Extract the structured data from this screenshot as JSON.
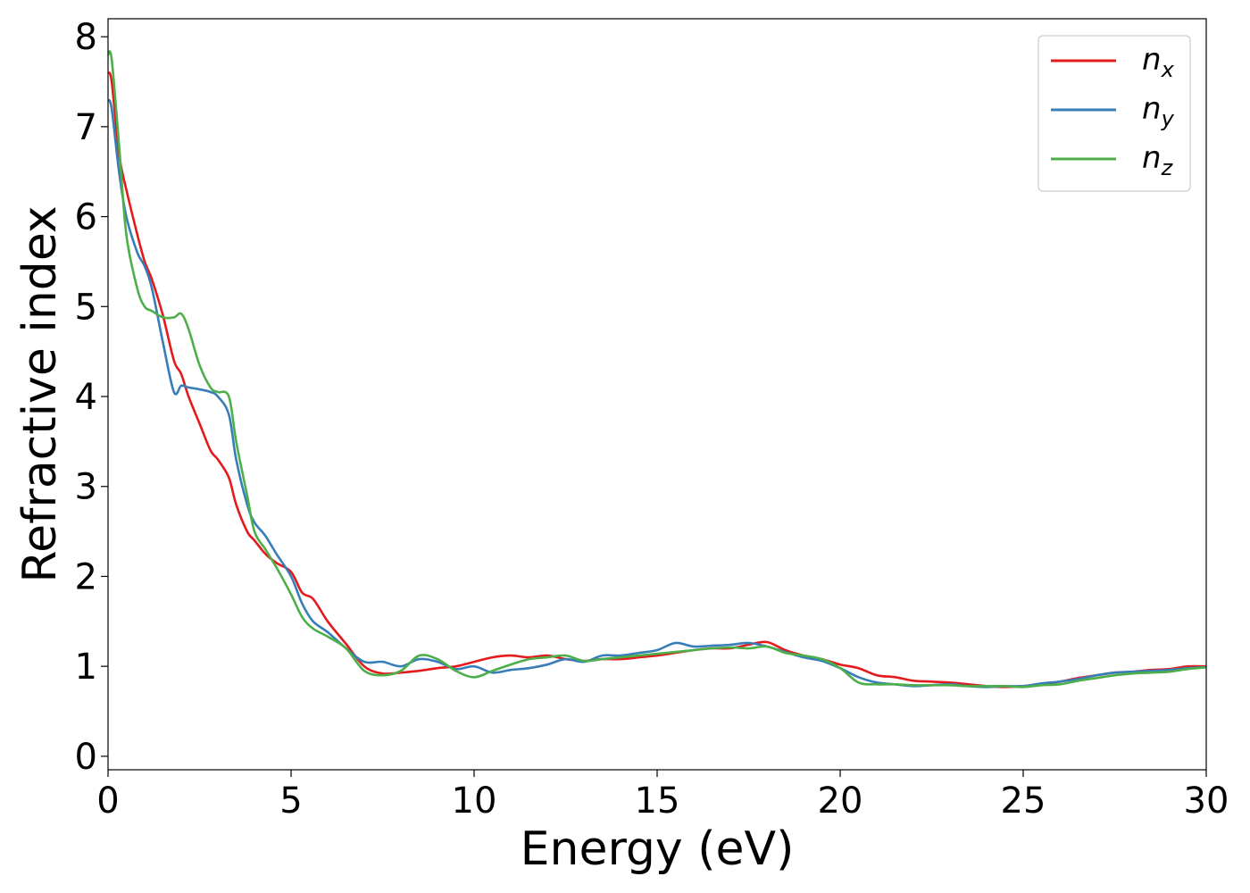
{
  "chart_data": {
    "type": "line",
    "xlabel": "Energy (eV)",
    "ylabel": "Refractive index",
    "xlim": [
      0,
      30
    ],
    "ylim": [
      -0.15,
      8.2
    ],
    "xticks": [
      0,
      5,
      10,
      15,
      20,
      25,
      30
    ],
    "yticks": [
      0,
      1,
      2,
      3,
      4,
      5,
      6,
      7,
      8
    ],
    "grid": false,
    "legend_position": "top-right",
    "series": [
      {
        "name": "n",
        "subscript": "x",
        "color": "#e41a1c",
        "x": [
          0,
          0.1,
          0.3,
          0.5,
          0.8,
          1.0,
          1.2,
          1.5,
          1.8,
          2.0,
          2.2,
          2.5,
          2.8,
          3.0,
          3.3,
          3.5,
          3.8,
          4.0,
          4.3,
          4.6,
          5.0,
          5.3,
          5.6,
          6.0,
          6.5,
          7.0,
          7.5,
          8.0,
          8.5,
          9.0,
          9.5,
          10.0,
          10.5,
          11.0,
          11.5,
          12.0,
          12.5,
          13.0,
          13.5,
          14.0,
          14.5,
          15.0,
          15.5,
          16.0,
          16.5,
          17.0,
          17.5,
          18.0,
          18.5,
          19.0,
          19.5,
          20.0,
          20.5,
          21.0,
          21.5,
          22.0,
          22.5,
          23.0,
          23.5,
          24.0,
          24.5,
          25.0,
          25.5,
          26.0,
          26.5,
          27.0,
          27.5,
          28.0,
          28.5,
          29.0,
          29.5,
          30.0
        ],
        "y": [
          7.6,
          7.5,
          6.7,
          6.3,
          5.8,
          5.5,
          5.3,
          4.9,
          4.4,
          4.25,
          4.0,
          3.7,
          3.4,
          3.3,
          3.1,
          2.8,
          2.5,
          2.4,
          2.25,
          2.15,
          2.05,
          1.82,
          1.75,
          1.5,
          1.25,
          1.0,
          0.92,
          0.93,
          0.95,
          0.98,
          1.0,
          1.05,
          1.1,
          1.12,
          1.1,
          1.12,
          1.08,
          1.06,
          1.08,
          1.08,
          1.1,
          1.12,
          1.15,
          1.18,
          1.2,
          1.2,
          1.24,
          1.27,
          1.18,
          1.12,
          1.08,
          1.02,
          0.98,
          0.9,
          0.88,
          0.84,
          0.83,
          0.82,
          0.8,
          0.78,
          0.77,
          0.78,
          0.8,
          0.83,
          0.87,
          0.9,
          0.93,
          0.94,
          0.96,
          0.97,
          1.0,
          1.0
        ]
      },
      {
        "name": "n",
        "subscript": "y",
        "color": "#377eb8",
        "x": [
          0,
          0.1,
          0.3,
          0.5,
          0.8,
          1.0,
          1.2,
          1.5,
          1.8,
          2.0,
          2.2,
          2.5,
          2.8,
          3.0,
          3.3,
          3.5,
          3.8,
          4.0,
          4.3,
          4.6,
          5.0,
          5.3,
          5.6,
          6.0,
          6.5,
          7.0,
          7.5,
          8.0,
          8.5,
          9.0,
          9.5,
          10.0,
          10.5,
          11.0,
          11.5,
          12.0,
          12.5,
          13.0,
          13.5,
          14.0,
          14.5,
          15.0,
          15.5,
          16.0,
          16.5,
          17.0,
          17.5,
          18.0,
          18.5,
          19.0,
          19.5,
          20.0,
          20.5,
          21.0,
          21.5,
          22.0,
          22.5,
          23.0,
          23.5,
          24.0,
          24.5,
          25.0,
          25.5,
          26.0,
          26.5,
          27.0,
          27.5,
          28.0,
          28.5,
          29.0,
          29.5,
          30.0
        ],
        "y": [
          7.3,
          7.2,
          6.5,
          6.0,
          5.6,
          5.45,
          5.2,
          4.6,
          4.05,
          4.12,
          4.1,
          4.08,
          4.05,
          4.0,
          3.8,
          3.3,
          2.8,
          2.6,
          2.45,
          2.25,
          2.0,
          1.7,
          1.5,
          1.38,
          1.2,
          1.05,
          1.05,
          1.0,
          1.08,
          1.05,
          0.97,
          1.0,
          0.93,
          0.96,
          0.98,
          1.02,
          1.08,
          1.05,
          1.12,
          1.12,
          1.15,
          1.18,
          1.26,
          1.22,
          1.23,
          1.24,
          1.26,
          1.22,
          1.16,
          1.1,
          1.06,
          0.98,
          0.88,
          0.82,
          0.8,
          0.78,
          0.79,
          0.8,
          0.78,
          0.77,
          0.78,
          0.78,
          0.81,
          0.83,
          0.86,
          0.9,
          0.93,
          0.94,
          0.95,
          0.96,
          0.98,
          0.99
        ]
      },
      {
        "name": "n",
        "subscript": "z",
        "color": "#4daf4a",
        "x": [
          0,
          0.1,
          0.3,
          0.5,
          0.8,
          1.0,
          1.2,
          1.5,
          1.8,
          2.0,
          2.2,
          2.5,
          2.8,
          3.0,
          3.3,
          3.5,
          3.8,
          4.0,
          4.3,
          4.6,
          5.0,
          5.3,
          5.6,
          6.0,
          6.5,
          7.0,
          7.5,
          8.0,
          8.5,
          9.0,
          9.5,
          10.0,
          10.5,
          11.0,
          11.5,
          12.0,
          12.5,
          13.0,
          13.5,
          14.0,
          14.5,
          15.0,
          15.5,
          16.0,
          16.5,
          17.0,
          17.5,
          18.0,
          18.5,
          19.0,
          19.5,
          20.0,
          20.5,
          21.0,
          21.5,
          22.0,
          22.5,
          23.0,
          23.5,
          24.0,
          24.5,
          25.0,
          25.5,
          26.0,
          26.5,
          27.0,
          27.5,
          28.0,
          28.5,
          29.0,
          29.5,
          30.0
        ],
        "y": [
          7.8,
          7.75,
          6.8,
          5.8,
          5.2,
          5.0,
          4.95,
          4.88,
          4.88,
          4.92,
          4.75,
          4.35,
          4.1,
          4.05,
          4.0,
          3.5,
          2.9,
          2.5,
          2.3,
          2.1,
          1.8,
          1.55,
          1.42,
          1.33,
          1.2,
          0.95,
          0.9,
          0.95,
          1.12,
          1.08,
          0.95,
          0.88,
          0.95,
          1.02,
          1.08,
          1.1,
          1.12,
          1.06,
          1.08,
          1.1,
          1.12,
          1.14,
          1.16,
          1.18,
          1.2,
          1.21,
          1.2,
          1.22,
          1.15,
          1.12,
          1.08,
          0.98,
          0.82,
          0.8,
          0.8,
          0.79,
          0.79,
          0.79,
          0.78,
          0.78,
          0.78,
          0.77,
          0.79,
          0.8,
          0.84,
          0.87,
          0.9,
          0.92,
          0.93,
          0.94,
          0.97,
          0.99
        ]
      }
    ]
  }
}
